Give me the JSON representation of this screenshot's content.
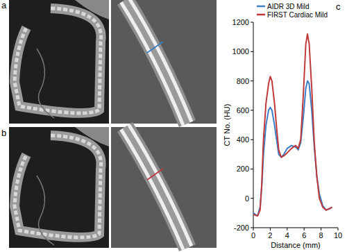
{
  "panel_labels": [
    "a",
    "b"
  ],
  "chart_data": {
    "type": "line",
    "panel_label": "c",
    "xlabel": "Distance (mm)",
    "ylabel": "CT No. (HU)",
    "x": [
      0,
      0.5,
      0.8,
      1.0,
      1.2,
      1.5,
      1.8,
      2.0,
      2.2,
      2.5,
      2.8,
      3.0,
      3.3,
      3.6,
      4.0,
      4.5,
      5.0,
      5.3,
      5.6,
      5.9,
      6.2,
      6.4,
      6.6,
      6.9,
      7.2,
      7.5,
      7.8,
      8.2,
      8.6,
      9.0,
      9.3
    ],
    "series": [
      {
        "name": "AIDR 3D Mild",
        "color": "#3a7fc8",
        "values": [
          -100,
          -120,
          -60,
          80,
          300,
          500,
          600,
          620,
          600,
          500,
          380,
          300,
          280,
          300,
          340,
          360,
          350,
          330,
          380,
          550,
          750,
          800,
          780,
          600,
          350,
          150,
          30,
          -50,
          -80,
          -70,
          -60
        ]
      },
      {
        "name": "FIRST Cardiac Mild",
        "color": "#c0393b",
        "values": [
          -110,
          -120,
          -80,
          100,
          400,
          650,
          780,
          830,
          800,
          650,
          450,
          330,
          280,
          290,
          310,
          340,
          360,
          340,
          400,
          700,
          1050,
          1120,
          1050,
          750,
          380,
          150,
          0,
          -60,
          -80,
          -70,
          -60
        ]
      }
    ],
    "xlim": [
      0,
      10
    ],
    "ylim": [
      -200,
      1200
    ],
    "xticks": [
      0,
      2,
      4,
      6,
      8,
      10
    ],
    "yticks": [
      -200,
      0,
      200,
      400,
      600,
      800,
      1000,
      1200
    ],
    "legend": "upper left"
  }
}
